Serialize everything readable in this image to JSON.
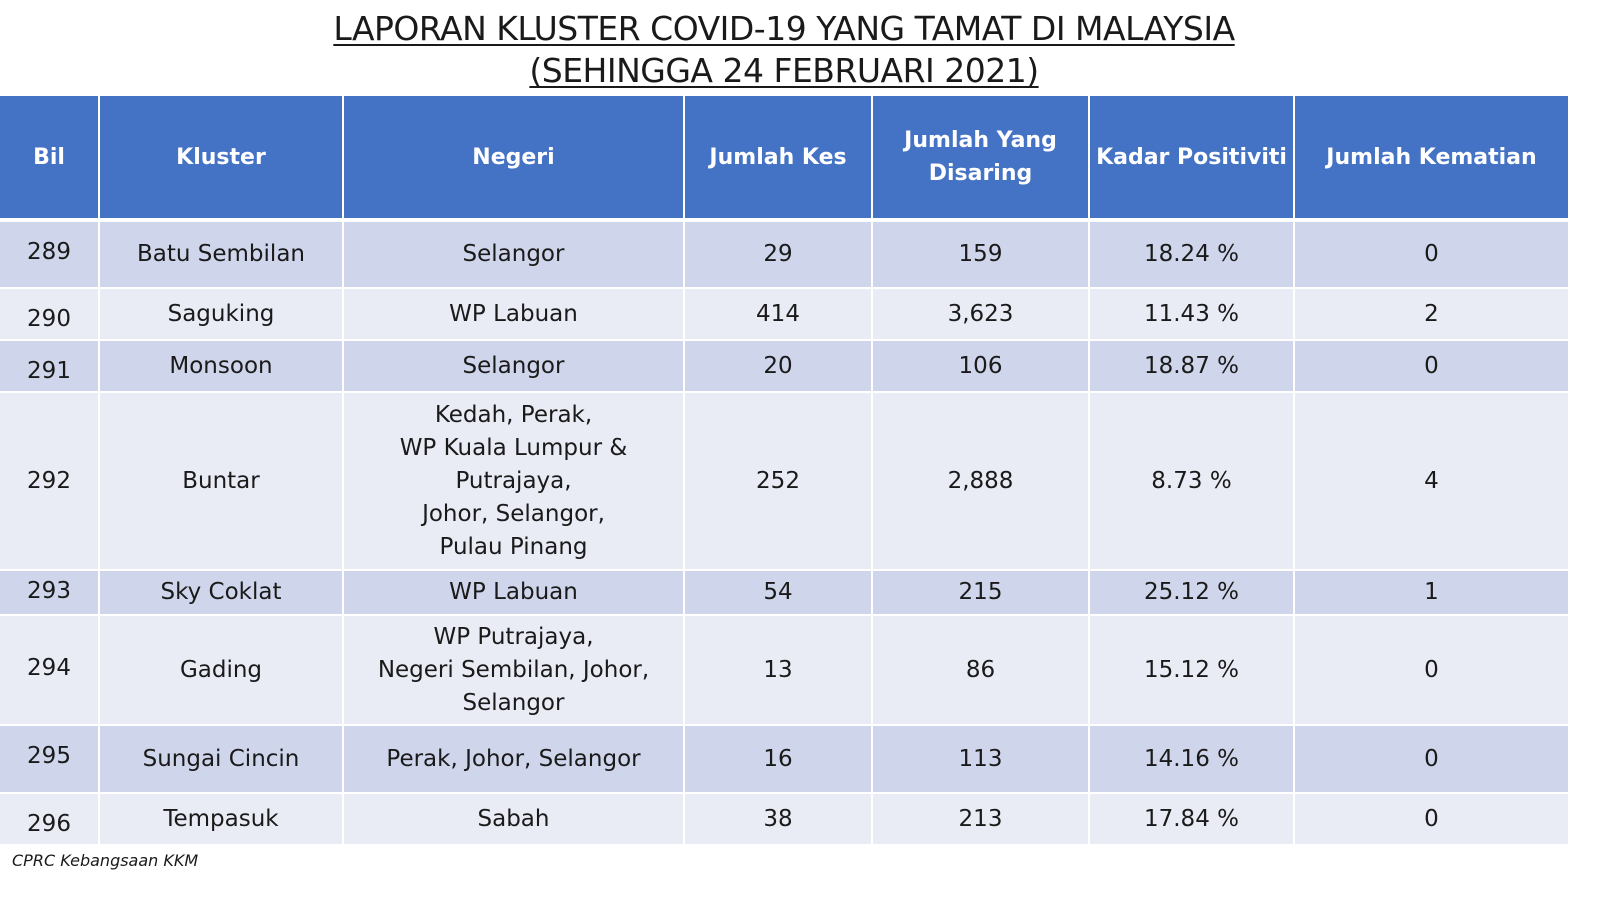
{
  "title": {
    "line1": "LAPORAN KLUSTER COVID-19 YANG TAMAT DI MALAYSIA",
    "line2": "(SEHINGGA 24 FEBRUARI 2021)"
  },
  "table": {
    "headers": [
      "Bil",
      "Kluster",
      "Negeri",
      "Jumlah Kes",
      "Jumlah Yang\nDisaring",
      "Kadar Positiviti",
      "Jumlah Kematian"
    ],
    "rows": [
      {
        "bil": "289",
        "kluster": "Batu Sembilan",
        "negeri": "Selangor",
        "jumlah_kes": "29",
        "jumlah_disaring": "159",
        "kadar_positiviti": "18.24 %",
        "jumlah_kematian": "0"
      },
      {
        "bil": "290",
        "kluster": "Saguking",
        "negeri": "WP Labuan",
        "jumlah_kes": "414",
        "jumlah_disaring": "3,623",
        "kadar_positiviti": "11.43 %",
        "jumlah_kematian": "2"
      },
      {
        "bil": "291",
        "kluster": "Monsoon",
        "negeri": "Selangor",
        "jumlah_kes": "20",
        "jumlah_disaring": "106",
        "kadar_positiviti": "18.87 %",
        "jumlah_kematian": "0"
      },
      {
        "bil": "292",
        "kluster": "Buntar",
        "negeri": "Kedah, Perak,\nWP Kuala Lumpur & Putrajaya,\nJohor, Selangor,\nPulau Pinang",
        "jumlah_kes": "252",
        "jumlah_disaring": "2,888",
        "kadar_positiviti": "8.73 %",
        "jumlah_kematian": "4"
      },
      {
        "bil": "293",
        "kluster": "Sky Coklat",
        "negeri": "WP Labuan",
        "jumlah_kes": "54",
        "jumlah_disaring": "215",
        "kadar_positiviti": "25.12 %",
        "jumlah_kematian": "1"
      },
      {
        "bil": "294",
        "kluster": "Gading",
        "negeri": "WP Putrajaya,\nNegeri Sembilan, Johor,\nSelangor",
        "jumlah_kes": "13",
        "jumlah_disaring": "86",
        "kadar_positiviti": "15.12 %",
        "jumlah_kematian": "0"
      },
      {
        "bil": "295",
        "kluster": "Sungai Cincin",
        "negeri": "Perak, Johor, Selangor",
        "jumlah_kes": "16",
        "jumlah_disaring": "113",
        "kadar_positiviti": "14.16 %",
        "jumlah_kematian": "0"
      },
      {
        "bil": "296",
        "kluster": "Tempasuk",
        "negeri": "Sabah",
        "jumlah_kes": "38",
        "jumlah_disaring": "213",
        "kadar_positiviti": "17.84 %",
        "jumlah_kematian": "0"
      }
    ]
  },
  "footer": {
    "source": "CPRC Kebangsaan KKM"
  },
  "colors": {
    "header_bg": "#4472c4",
    "row_band_dark": "#cfd5ea",
    "row_band_light": "#e9ebf5"
  }
}
